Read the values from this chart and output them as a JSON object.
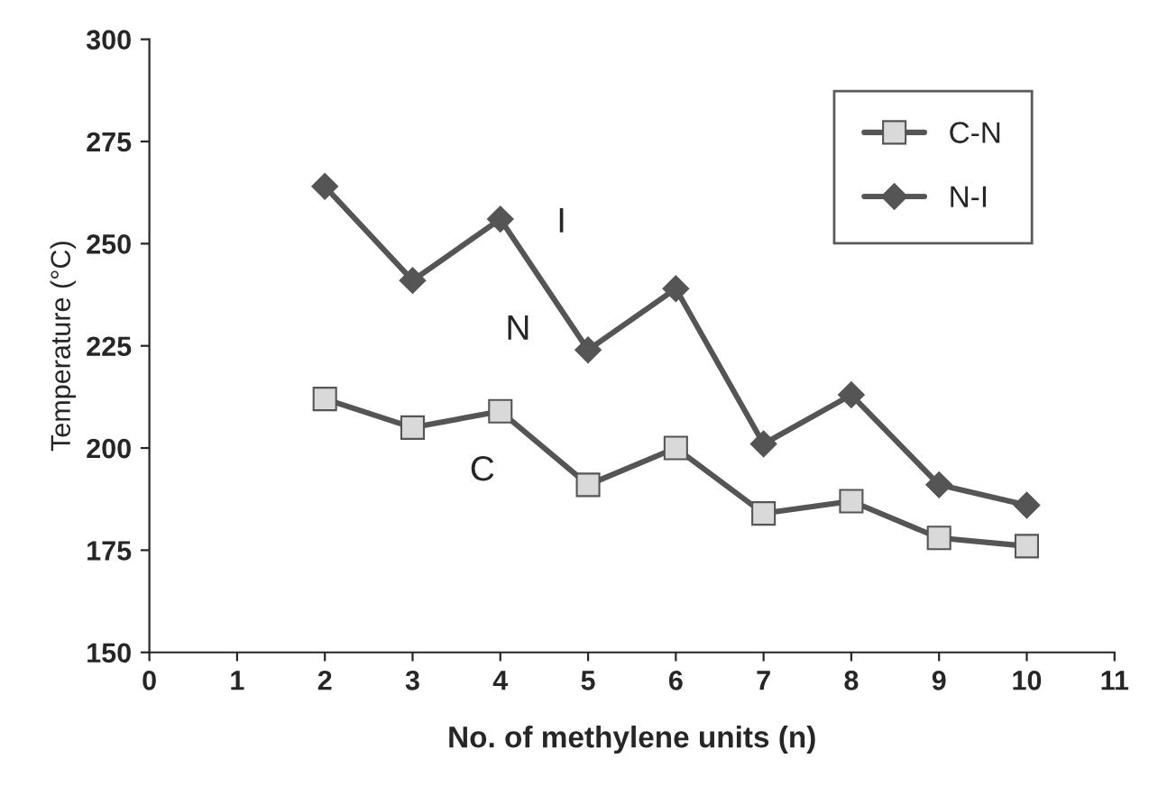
{
  "chart_data": {
    "type": "line",
    "xlabel": "No. of methylene units (n)",
    "ylabel": "Temperature (°C)",
    "x": [
      2,
      3,
      4,
      5,
      6,
      7,
      8,
      9,
      10
    ],
    "series": [
      {
        "name": "C-N",
        "color": "#555555",
        "marker": "square",
        "values": [
          212,
          205,
          209,
          191,
          200,
          184,
          187,
          178,
          176
        ]
      },
      {
        "name": "N-I",
        "color": "#555555",
        "marker": "diamond",
        "values": [
          264,
          241,
          256,
          224,
          239,
          201,
          213,
          191,
          186
        ]
      }
    ],
    "annotations": [
      "I",
      "N",
      "C"
    ],
    "xlim": [
      0,
      11
    ],
    "xticks": [
      0,
      1,
      2,
      3,
      4,
      5,
      6,
      7,
      8,
      9,
      10,
      11
    ],
    "ylim": [
      150,
      300
    ],
    "yticks": [
      150,
      175,
      200,
      225,
      250,
      275,
      300
    ],
    "grid": false,
    "legend": "top right",
    "line_style": "solid"
  }
}
